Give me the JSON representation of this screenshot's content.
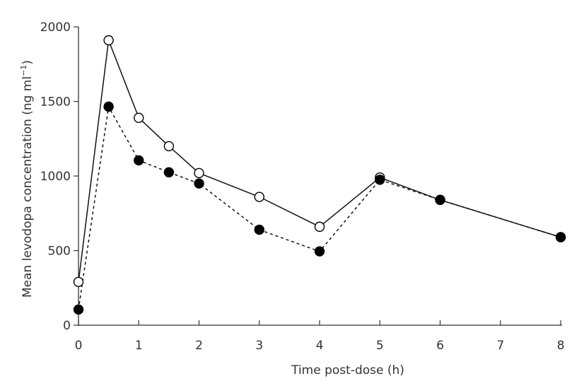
{
  "chart_data": {
    "type": "line",
    "xlabel": "Time post-dose (h)",
    "ylabel": "Mean levodopa concentration (ng ml",
    "ylabel_sup": "−1",
    "ylabel_close": ")",
    "xlim": [
      0,
      8
    ],
    "ylim": [
      0,
      2000
    ],
    "xticks": [
      0,
      1,
      2,
      3,
      4,
      5,
      6,
      7,
      8
    ],
    "yticks": [
      0,
      500,
      1000,
      1500,
      2000
    ],
    "grid": false,
    "series": [
      {
        "marker": "open-circle",
        "line": "solid",
        "x": [
          0,
          0.5,
          1,
          1.5,
          2,
          3,
          4,
          5,
          6,
          8
        ],
        "y": [
          290,
          1910,
          1390,
          1200,
          1020,
          860,
          660,
          990,
          840,
          590
        ]
      },
      {
        "marker": "filled-circle",
        "line": "dashed",
        "x": [
          0,
          0.5,
          1,
          1.5,
          2,
          3,
          4,
          5,
          6,
          8
        ],
        "y": [
          105,
          1465,
          1105,
          1025,
          950,
          640,
          495,
          975,
          840,
          590
        ]
      }
    ]
  }
}
